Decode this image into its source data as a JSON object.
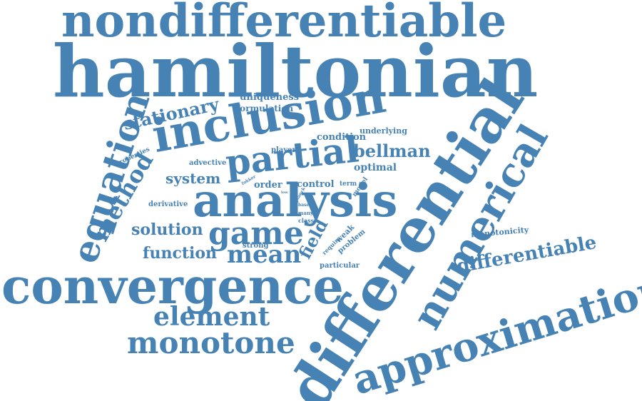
{
  "colors": {
    "word": "#4682b4",
    "background": "#ffffff"
  },
  "words": [
    "nondifferentiable",
    "hamiltonian",
    "differential",
    "convergence",
    "inclusion",
    "analysis",
    "approximation",
    "numerical",
    "equation",
    "partial",
    "game",
    "monotone",
    "element",
    "method",
    "mean",
    "differentiable",
    "stationary",
    "bellman",
    "function",
    "solution",
    "field",
    "system",
    "uniqueness",
    "formulation",
    "condition",
    "underlying",
    "player",
    "optimal",
    "advective",
    "properties",
    "control",
    "order",
    "derivative",
    "term",
    "model",
    "weak",
    "problem",
    "require",
    "strong",
    "particular",
    "class",
    "many",
    "fokker",
    "base",
    "planck",
    "low",
    "monotonicity"
  ]
}
